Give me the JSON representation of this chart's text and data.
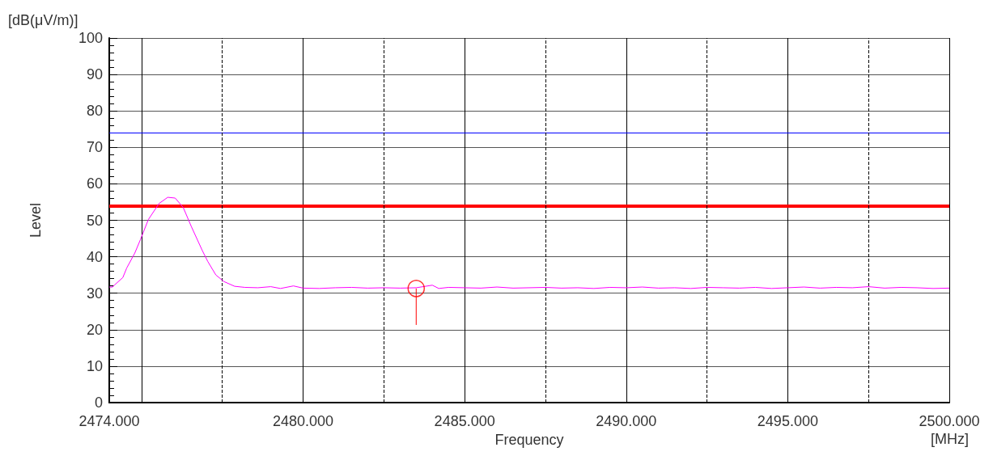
{
  "chart_data": {
    "type": "line",
    "xlabel": "Frequency",
    "ylabel": "Level",
    "annotations": [
      "[dB(μV/m)]",
      "[MHz]"
    ],
    "xlim": [
      2474,
      2500
    ],
    "xticks": [
      {
        "value": 2474,
        "label": "2474.000"
      },
      {
        "value": 2475,
        "label": null
      },
      {
        "value": 2480,
        "label": "2480.000"
      },
      {
        "value": 2485,
        "label": "2485.000"
      },
      {
        "value": 2490,
        "label": "2490.000"
      },
      {
        "value": 2495,
        "label": "2495.000"
      },
      {
        "value": 2500,
        "label": "2500.000"
      }
    ],
    "ylim": [
      0,
      100
    ],
    "yticks": [
      0,
      10,
      20,
      30,
      40,
      50,
      60,
      70,
      80,
      90,
      100
    ],
    "grid": true,
    "legend": false,
    "series": [
      {
        "color": "#ff00ff",
        "marker": "none",
        "x": [
          2474,
          2474.1,
          2474.17,
          2474.42,
          2474.54,
          2474.79,
          2474.96,
          2475.21,
          2475.54,
          2475.81,
          2476.04,
          2476.29,
          2476.54,
          2476.88,
          2477.05,
          2477.3,
          2477.55,
          2477.88,
          2478.2,
          2478.6,
          2479,
          2479.3,
          2479.7,
          2480,
          2480.5,
          2481,
          2481.5,
          2482,
          2482.5,
          2483,
          2483.5,
          2484,
          2484.2,
          2484.5,
          2485,
          2485.5,
          2486,
          2486.5,
          2487,
          2487.5,
          2488,
          2488.5,
          2489,
          2489.5,
          2490,
          2490.5,
          2491,
          2491.5,
          2492,
          2492.5,
          2493,
          2493.5,
          2494,
          2494.5,
          2495,
          2495.5,
          2496,
          2496.5,
          2497,
          2497.5,
          2498,
          2498.5,
          2499,
          2499.5,
          2500
        ],
        "values": [
          31.7,
          31.7,
          32.3,
          34.3,
          36.9,
          41.0,
          44.6,
          50.2,
          54.6,
          56.3,
          56.1,
          53.5,
          48.3,
          41.7,
          38.7,
          35.0,
          33.2,
          31.9,
          31.6,
          31.5,
          31.8,
          31.3,
          32.0,
          31.4,
          31.3,
          31.5,
          31.6,
          31.4,
          31.5,
          31.4,
          31.5,
          32.2,
          31.3,
          31.6,
          31.5,
          31.4,
          31.7,
          31.4,
          31.5,
          31.6,
          31.4,
          31.5,
          31.3,
          31.6,
          31.5,
          31.7,
          31.4,
          31.5,
          31.3,
          31.6,
          31.5,
          31.4,
          31.6,
          31.3,
          31.5,
          31.7,
          31.4,
          31.6,
          31.5,
          31.8,
          31.4,
          31.6,
          31.5,
          31.3,
          31.4
        ]
      },
      {
        "type": "scatter",
        "color": "#ff0000",
        "marker": "circle",
        "x": [
          2483.5
        ],
        "values": [
          31.3
        ],
        "errors": [
          [
            21.3,
            31.3
          ]
        ]
      }
    ],
    "ref_lines": [
      {
        "axis": "y",
        "value": 54,
        "color": "#ff0000",
        "line_style": "solid"
      },
      {
        "axis": "y",
        "value": 74,
        "color": "#0000ff",
        "line_style": "solid"
      },
      {
        "axis": "x",
        "value": 2477.5,
        "color": "#000000",
        "line_style": "dashed"
      },
      {
        "axis": "x",
        "value": 2482.5,
        "color": "#000000",
        "line_style": "dashed"
      },
      {
        "axis": "x",
        "value": 2487.5,
        "color": "#000000",
        "line_style": "dashed"
      },
      {
        "axis": "x",
        "value": 2492.5,
        "color": "#000000",
        "line_style": "dashed"
      },
      {
        "axis": "x",
        "value": 2497.5,
        "color": "#000000",
        "line_style": "dashed"
      }
    ]
  }
}
